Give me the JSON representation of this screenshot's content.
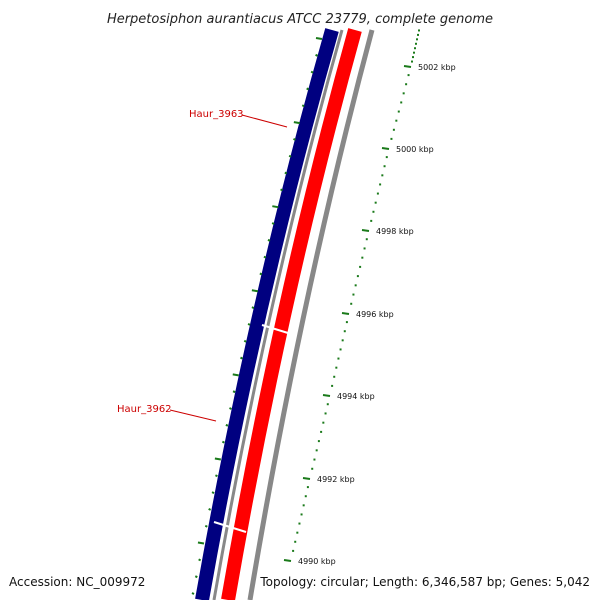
{
  "title": "Herpetosiphon aurantiacus ATCC 23779, complete genome",
  "footer": {
    "accession": "Accession: NC_009972",
    "stats": "Topology: circular; Length: 6,346,587 bp; Genes: 5,042"
  },
  "genes": [
    {
      "name": "Haur_3963"
    },
    {
      "name": "Haur_3962"
    }
  ],
  "ticks": [
    {
      "label": "5002 kbp"
    },
    {
      "label": "5000 kbp"
    },
    {
      "label": "4998 kbp"
    },
    {
      "label": "4996 kbp"
    },
    {
      "label": "4994 kbp"
    },
    {
      "label": "4992 kbp"
    },
    {
      "label": "4990 kbp"
    }
  ],
  "colors": {
    "forward_strand": "#000080",
    "reverse_strand": "#ff0000",
    "backbone": "#888888",
    "ticks": "#1a7a1a",
    "gene_label": "#cc0000"
  }
}
